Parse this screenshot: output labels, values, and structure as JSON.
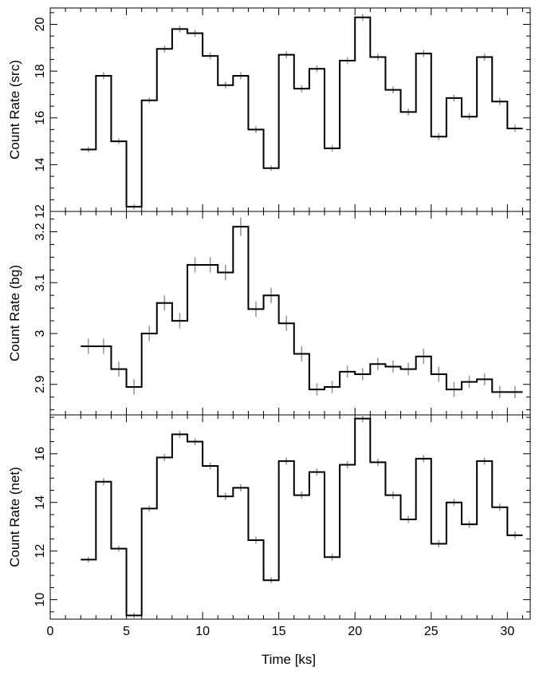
{
  "chart_data": {
    "type": "line",
    "style": "step-histogram with error bars",
    "shared_x": {
      "label": "Time [ks]",
      "range": [
        0,
        31.5
      ],
      "ticks": [
        0,
        5,
        10,
        15,
        20,
        25,
        30
      ]
    },
    "bin_centers": [
      2.5,
      3.5,
      4.5,
      5.5,
      6.5,
      7.5,
      8.5,
      9.5,
      10.5,
      11.5,
      12.5,
      13.5,
      14.5,
      15.5,
      16.5,
      17.5,
      18.5,
      19.5,
      20.5,
      21.5,
      22.5,
      23.5,
      24.5,
      25.5,
      26.5,
      27.5,
      28.5,
      29.5,
      30.5
    ],
    "bin_width": 1.0,
    "colors": {
      "line": "#000000",
      "error_bars": "#999999",
      "frame": "#000000"
    },
    "panels": [
      {
        "name": "src",
        "ylabel": "Count Rate (src)",
        "ylim": [
          12,
          20.7
        ],
        "yticks": [
          12,
          14,
          16,
          18,
          20
        ],
        "values": [
          14.65,
          17.8,
          15.0,
          12.2,
          16.75,
          18.95,
          19.8,
          19.62,
          18.65,
          17.4,
          17.8,
          15.5,
          13.85,
          18.7,
          17.25,
          18.1,
          14.7,
          18.45,
          20.3,
          18.6,
          17.2,
          16.25,
          18.75,
          15.2,
          16.85,
          16.05,
          18.6,
          16.7,
          15.55
        ],
        "errors": [
          0.12,
          0.15,
          0.12,
          0.12,
          0.12,
          0.15,
          0.15,
          0.15,
          0.15,
          0.15,
          0.15,
          0.15,
          0.12,
          0.15,
          0.15,
          0.15,
          0.15,
          0.15,
          0.15,
          0.15,
          0.15,
          0.15,
          0.15,
          0.15,
          0.15,
          0.15,
          0.15,
          0.15,
          0.15
        ]
      },
      {
        "name": "bg",
        "ylabel": "Count Rate (bg)",
        "ylim": [
          2.84,
          3.24
        ],
        "yticks": [
          2.9,
          3,
          3.1,
          3.2
        ],
        "ytick_labels": [
          "2.9",
          "3",
          "3.1",
          "3.2"
        ],
        "values": [
          2.975,
          2.975,
          2.93,
          2.895,
          3.0,
          3.06,
          3.025,
          3.135,
          3.135,
          3.12,
          3.21,
          3.048,
          3.075,
          3.02,
          2.96,
          2.89,
          2.895,
          2.925,
          2.92,
          2.94,
          2.935,
          2.93,
          2.955,
          2.92,
          2.89,
          2.905,
          2.91,
          2.885,
          2.885
        ],
        "errors": [
          0.015,
          0.015,
          0.015,
          0.015,
          0.015,
          0.015,
          0.015,
          0.015,
          0.015,
          0.015,
          0.018,
          0.015,
          0.015,
          0.015,
          0.015,
          0.012,
          0.012,
          0.012,
          0.012,
          0.012,
          0.012,
          0.012,
          0.015,
          0.015,
          0.015,
          0.012,
          0.012,
          0.012,
          0.012
        ]
      },
      {
        "name": "net",
        "ylabel": "Count Rate (net)",
        "ylim": [
          9.2,
          17.6
        ],
        "yticks": [
          10,
          12,
          14,
          16
        ],
        "values": [
          11.65,
          14.85,
          12.1,
          9.35,
          13.75,
          15.85,
          16.8,
          16.5,
          15.5,
          14.25,
          14.6,
          12.45,
          10.8,
          15.7,
          14.3,
          15.25,
          11.75,
          15.55,
          17.45,
          15.65,
          14.3,
          13.3,
          15.8,
          12.3,
          14.0,
          13.1,
          15.7,
          13.8,
          12.65
        ],
        "errors": [
          0.12,
          0.15,
          0.12,
          0.12,
          0.12,
          0.15,
          0.15,
          0.15,
          0.15,
          0.15,
          0.15,
          0.15,
          0.12,
          0.15,
          0.15,
          0.15,
          0.15,
          0.15,
          0.15,
          0.15,
          0.15,
          0.15,
          0.15,
          0.15,
          0.15,
          0.15,
          0.15,
          0.15,
          0.15
        ]
      }
    ]
  }
}
